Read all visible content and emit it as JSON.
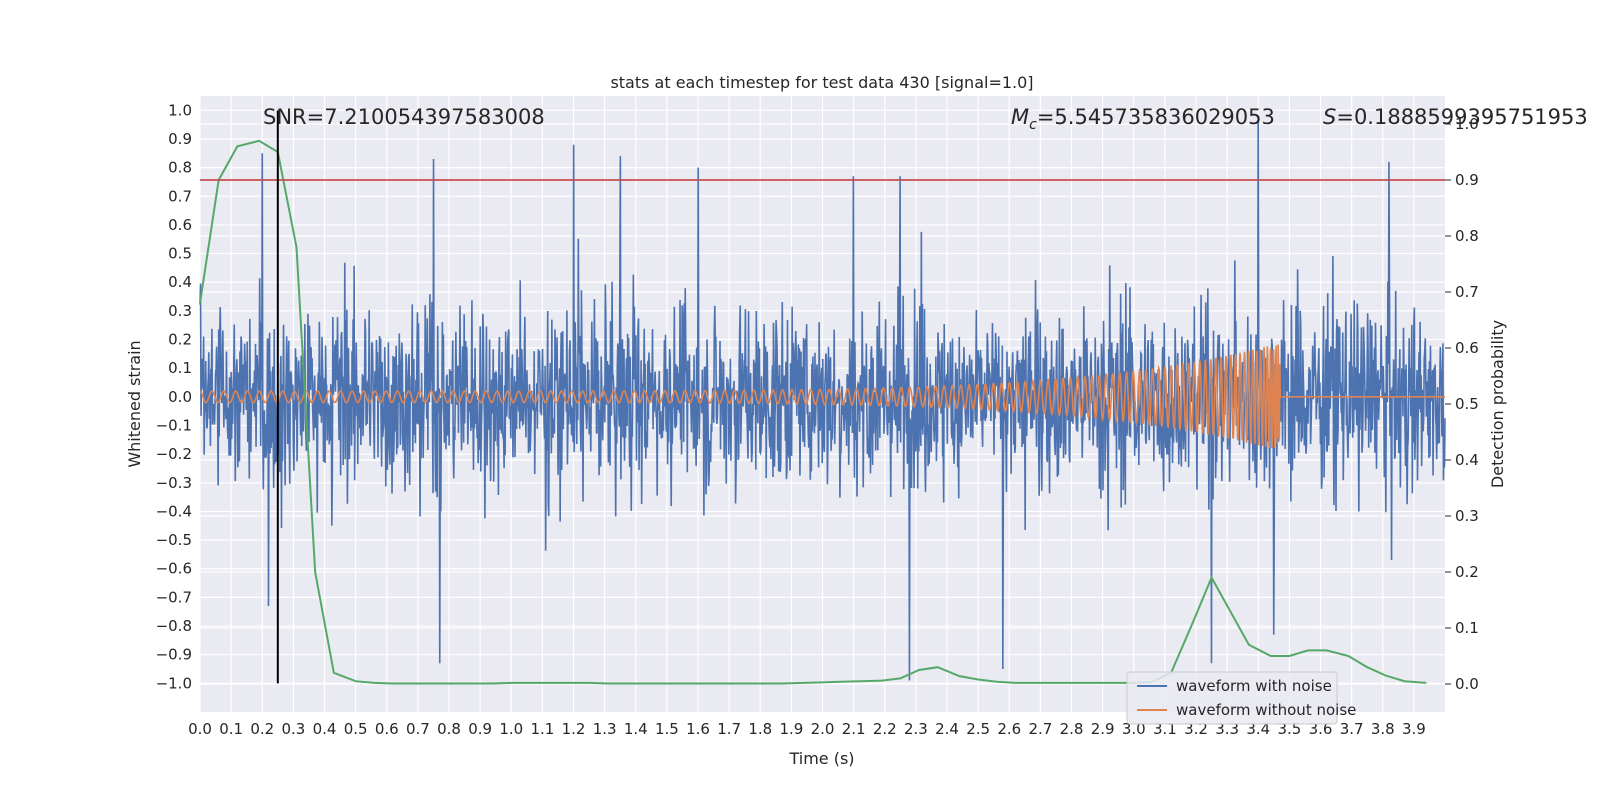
{
  "chart_data": {
    "type": "line",
    "title": "stats at each timestep for test data 430 [signal=1.0]",
    "xlabel": "Time (s)",
    "ylabel": "Whitened strain",
    "y2label": "Detection probability",
    "xlim": [
      0.0,
      4.0
    ],
    "ylim": [
      -1.1,
      1.05
    ],
    "y2lim": [
      -0.05,
      1.05
    ],
    "xticks": [
      "0.0",
      "0.1",
      "0.2",
      "0.3",
      "0.4",
      "0.5",
      "0.6",
      "0.7",
      "0.8",
      "0.9",
      "1.0",
      "1.1",
      "1.2",
      "1.3",
      "1.4",
      "1.5",
      "1.6",
      "1.7",
      "1.8",
      "1.9",
      "2.0",
      "2.1",
      "2.2",
      "2.3",
      "2.4",
      "2.5",
      "2.6",
      "2.7",
      "2.8",
      "2.9",
      "3.0",
      "3.1",
      "3.2",
      "3.3",
      "3.4",
      "3.5",
      "3.6",
      "3.7",
      "3.8",
      "3.9"
    ],
    "yticks": [
      "1.0",
      "0.9",
      "0.8",
      "0.7",
      "0.6",
      "0.5",
      "0.4",
      "0.3",
      "0.2",
      "0.1",
      "0.0",
      "−0.1",
      "−0.2",
      "−0.3",
      "−0.4",
      "−0.5",
      "−0.6",
      "−0.7",
      "−0.8",
      "−0.9",
      "−1.0"
    ],
    "y2ticks": [
      "1.0",
      "0.9",
      "0.8",
      "0.7",
      "0.6",
      "0.5",
      "0.4",
      "0.3",
      "0.2",
      "0.1",
      "0.0"
    ],
    "annotations": {
      "snr": "SNR=7.210054397583008",
      "mc_symbol": "M",
      "mc_sub": "c",
      "mc_value": "=5.545735836029053",
      "s_symbol": "S",
      "s_value": "=0.1888599395751953"
    },
    "threshold": 0.9,
    "marker_time": 0.25,
    "signal_end_time": 3.47,
    "series": [
      {
        "name": "waveform with noise",
        "color": "#4c72b0",
        "kind": "noise",
        "amplitude_core": 0.3,
        "peaks": [
          [
            0.2,
            0.85
          ],
          [
            0.75,
            0.83
          ],
          [
            1.2,
            0.88
          ],
          [
            1.35,
            0.84
          ],
          [
            1.6,
            0.8
          ],
          [
            2.1,
            0.77
          ],
          [
            2.25,
            0.77
          ],
          [
            3.4,
            0.96
          ],
          [
            3.82,
            0.82
          ],
          [
            0.77,
            -0.93
          ],
          [
            2.28,
            -0.99
          ],
          [
            2.58,
            -0.95
          ],
          [
            3.25,
            -0.93
          ],
          [
            3.45,
            -0.83
          ],
          [
            0.22,
            -0.73
          ]
        ]
      },
      {
        "name": "waveform without noise",
        "color": "#dd8452",
        "kind": "chirp",
        "start_amplitude": 0.02,
        "end_amplitude": 0.19
      },
      {
        "name": "detection probability",
        "color": "#55a868",
        "axis": "right",
        "x": [
          0.0,
          0.06,
          0.12,
          0.19,
          0.25,
          0.31,
          0.37,
          0.43,
          0.5,
          0.56,
          0.62,
          0.69,
          0.75,
          0.81,
          0.87,
          0.94,
          1.0,
          1.06,
          1.12,
          1.19,
          1.25,
          1.31,
          1.37,
          1.44,
          1.5,
          1.56,
          1.62,
          1.69,
          1.75,
          1.81,
          1.87,
          1.94,
          2.0,
          2.06,
          2.12,
          2.19,
          2.25,
          2.31,
          2.37,
          2.44,
          2.5,
          2.56,
          2.62,
          2.69,
          2.75,
          2.81,
          2.87,
          2.94,
          3.0,
          3.06,
          3.12,
          3.19,
          3.25,
          3.31,
          3.37,
          3.44,
          3.5,
          3.56,
          3.62,
          3.69,
          3.75,
          3.81,
          3.87,
          3.94
        ],
        "y": [
          0.68,
          0.9,
          0.96,
          0.97,
          0.95,
          0.78,
          0.2,
          0.02,
          0.005,
          0.002,
          0.001,
          0.001,
          0.001,
          0.001,
          0.001,
          0.001,
          0.002,
          0.002,
          0.002,
          0.002,
          0.002,
          0.001,
          0.001,
          0.001,
          0.001,
          0.001,
          0.001,
          0.001,
          0.001,
          0.001,
          0.001,
          0.002,
          0.003,
          0.004,
          0.005,
          0.006,
          0.01,
          0.025,
          0.03,
          0.014,
          0.008,
          0.004,
          0.002,
          0.002,
          0.002,
          0.002,
          0.002,
          0.002,
          0.002,
          0.004,
          0.02,
          0.11,
          0.19,
          0.13,
          0.07,
          0.05,
          0.05,
          0.06,
          0.06,
          0.05,
          0.03,
          0.015,
          0.005,
          0.002
        ]
      }
    ],
    "legend": {
      "position": "bottom-right",
      "items": [
        "waveform with noise",
        "waveform without noise"
      ]
    }
  }
}
